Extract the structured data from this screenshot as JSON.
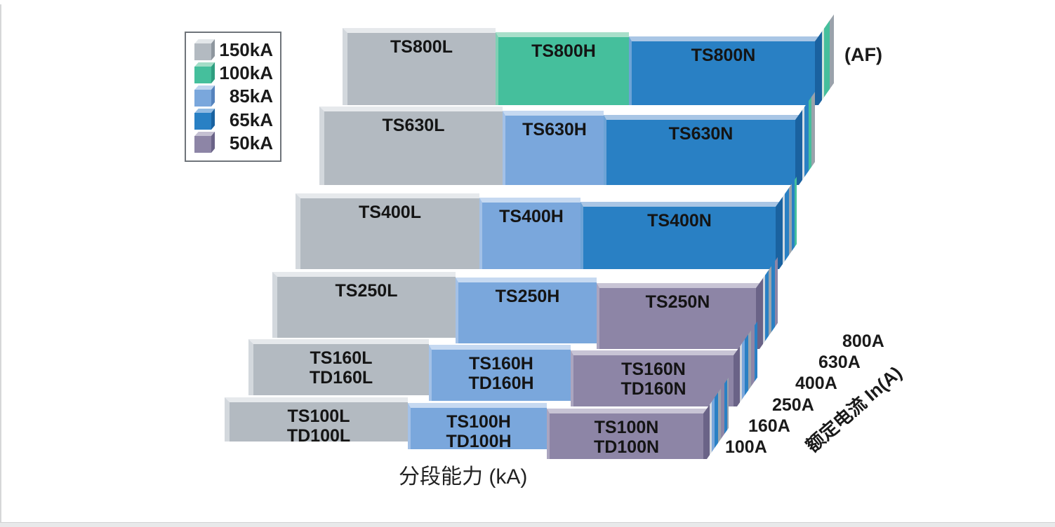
{
  "page": {
    "watermark": "1519983187755293.jpg",
    "background": "#ffffff"
  },
  "chart_data": {
    "type": "bar",
    "variant": "3d-stepped-range-chart",
    "title": "",
    "xlabel": "分段能力 (kA)",
    "depth_axis": {
      "label": "额定电流 In(A)",
      "frame_label": "(AF)",
      "ticks": [
        "100A",
        "160A",
        "250A",
        "400A",
        "630A",
        "800A"
      ]
    },
    "legend": {
      "position": "top-left",
      "entries": [
        {
          "label": "150kA",
          "color": "#b3bac1",
          "top": "#e3e7ea",
          "side": "#8e969e"
        },
        {
          "label": "100kA",
          "color": "#45bf9c",
          "top": "#a3ddc7",
          "side": "#2f9e80"
        },
        {
          "label": "85kA",
          "color": "#7aa7dc",
          "top": "#c0d5ef",
          "side": "#5583bd"
        },
        {
          "label": "65kA",
          "color": "#2980c4",
          "top": "#92bbe2",
          "side": "#1a62a0"
        },
        {
          "label": "50kA",
          "color": "#8d85a6",
          "top": "#c4c0d2",
          "side": "#6a6387"
        }
      ]
    },
    "colors": {
      "150kA": {
        "front": "#b3bac1",
        "topFace": "#e6e9ec",
        "leftFace": "#d3d8dd",
        "rightFace": "#949ca5"
      },
      "100kA": {
        "front": "#45bf9c",
        "topFace": "#a8dfca",
        "leftFace": "#7fd0b4",
        "rightFace": "#2f9e80"
      },
      "85kA": {
        "front": "#7aa7dc",
        "topFace": "#c6d9f1",
        "leftFace": "#a3c1e7",
        "rightFace": "#5583bd"
      },
      "65kA": {
        "front": "#2980c4",
        "topFace": "#a9c6e5",
        "leftFace": "#6da3d6",
        "rightFace": "#1a62a0"
      },
      "50kA": {
        "front": "#8d85a6",
        "topFace": "#c8c4d5",
        "leftFace": "#aba5bf",
        "rightFace": "#6a6387"
      }
    },
    "rows_order": "back-to-front",
    "rows": [
      {
        "rated_current": "800A",
        "segments": [
          {
            "model": [
              "TS800L"
            ],
            "breaking_capacity_kA": 150,
            "capacity_class": "150kA"
          },
          {
            "model": [
              "TS800H"
            ],
            "breaking_capacity_kA": 100,
            "capacity_class": "100kA"
          },
          {
            "model": [
              "TS800N"
            ],
            "breaking_capacity_kA": 65,
            "capacity_class": "65kA"
          }
        ]
      },
      {
        "rated_current": "630A",
        "segments": [
          {
            "model": [
              "TS630L"
            ],
            "breaking_capacity_kA": 150,
            "capacity_class": "150kA"
          },
          {
            "model": [
              "TS630H"
            ],
            "breaking_capacity_kA": 85,
            "capacity_class": "85kA"
          },
          {
            "model": [
              "TS630N"
            ],
            "breaking_capacity_kA": 65,
            "capacity_class": "65kA"
          }
        ]
      },
      {
        "rated_current": "400A",
        "segments": [
          {
            "model": [
              "TS400L"
            ],
            "breaking_capacity_kA": 150,
            "capacity_class": "150kA"
          },
          {
            "model": [
              "TS400H"
            ],
            "breaking_capacity_kA": 85,
            "capacity_class": "85kA"
          },
          {
            "model": [
              "TS400N"
            ],
            "breaking_capacity_kA": 65,
            "capacity_class": "65kA"
          }
        ]
      },
      {
        "rated_current": "250A",
        "segments": [
          {
            "model": [
              "TS250L"
            ],
            "breaking_capacity_kA": 150,
            "capacity_class": "150kA"
          },
          {
            "model": [
              "TS250H"
            ],
            "breaking_capacity_kA": 85,
            "capacity_class": "85kA"
          },
          {
            "model": [
              "TS250N"
            ],
            "breaking_capacity_kA": 50,
            "capacity_class": "50kA"
          }
        ]
      },
      {
        "rated_current": "160A",
        "segments": [
          {
            "model": [
              "TS160L",
              "TD160L"
            ],
            "breaking_capacity_kA": 150,
            "capacity_class": "150kA"
          },
          {
            "model": [
              "TS160H",
              "TD160H"
            ],
            "breaking_capacity_kA": 85,
            "capacity_class": "85kA"
          },
          {
            "model": [
              "TS160N",
              "TD160N"
            ],
            "breaking_capacity_kA": 50,
            "capacity_class": "50kA"
          }
        ]
      },
      {
        "rated_current": "100A",
        "segments": [
          {
            "model": [
              "TS100L",
              "TD100L"
            ],
            "breaking_capacity_kA": 150,
            "capacity_class": "150kA"
          },
          {
            "model": [
              "TS100H",
              "TD100H"
            ],
            "breaking_capacity_kA": 85,
            "capacity_class": "85kA"
          },
          {
            "model": [
              "TS100N",
              "TD100N"
            ],
            "breaking_capacity_kA": 50,
            "capacity_class": "50kA"
          }
        ]
      }
    ]
  }
}
